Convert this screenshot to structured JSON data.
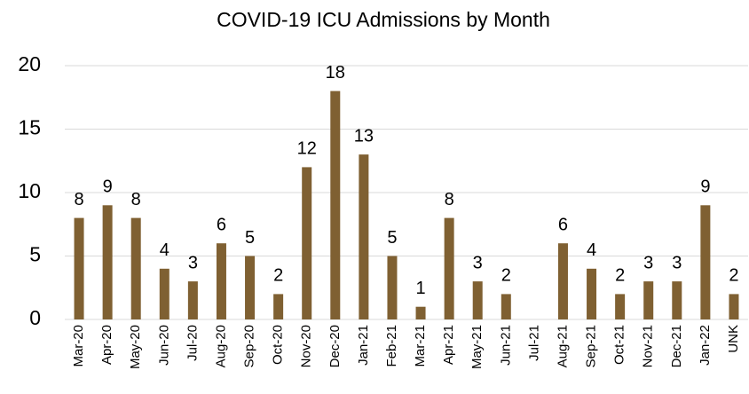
{
  "chart_data": {
    "type": "bar",
    "title": "COVID-19 ICU Admissions by Month",
    "categories": [
      "Mar-20",
      "Apr-20",
      "May-20",
      "Jun-20",
      "Jul-20",
      "Aug-20",
      "Sep-20",
      "Oct-20",
      "Nov-20",
      "Dec-20",
      "Jan-21",
      "Feb-21",
      "Mar-21",
      "Apr-21",
      "May-21",
      "Jun-21",
      "Jul-21",
      "Aug-21",
      "Sep-21",
      "Oct-21",
      "Nov-21",
      "Dec-21",
      "Jan-22",
      "UNK"
    ],
    "values": [
      8,
      9,
      8,
      4,
      3,
      6,
      5,
      2,
      12,
      18,
      13,
      5,
      1,
      8,
      3,
      2,
      null,
      6,
      4,
      2,
      3,
      3,
      9,
      2
    ],
    "color": "#7f6032",
    "ylim": [
      0,
      20
    ],
    "yticks": [
      0,
      5,
      10,
      15,
      20
    ],
    "grid": true
  }
}
